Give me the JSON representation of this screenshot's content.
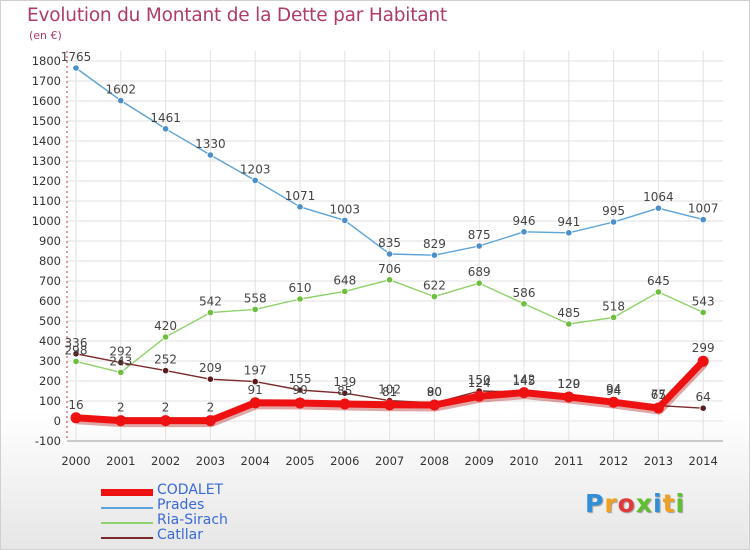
{
  "title": "Evolution du Montant de la Dette par Habitant",
  "unit": "(en €)",
  "chart_data": {
    "type": "line",
    "x": [
      "2000",
      "2001",
      "2002",
      "2003",
      "2004",
      "2005",
      "2006",
      "2007",
      "2008",
      "2009",
      "2010",
      "2011",
      "2012",
      "2013",
      "2014"
    ],
    "ylim": [
      -100,
      1800
    ],
    "yticks": [
      -100,
      0,
      100,
      200,
      300,
      400,
      500,
      600,
      700,
      800,
      900,
      1000,
      1100,
      1200,
      1300,
      1400,
      1500,
      1600,
      1700,
      1800
    ],
    "grid": true,
    "legend_position": "bottom-left",
    "series": [
      {
        "name": "Prades",
        "color": "#5ba3d9",
        "values": [
          1765,
          1602,
          1461,
          1330,
          1203,
          1071,
          1003,
          835,
          829,
          875,
          946,
          941,
          995,
          1064,
          1007
        ],
        "labels": [
          "1765",
          "1602",
          "1461",
          "1330",
          "1203",
          "1071",
          "1003",
          "835",
          "829",
          "875",
          "946",
          "941",
          "995",
          "1064",
          "1007"
        ]
      },
      {
        "name": "Ria-Sirach",
        "color": "#8fd16a",
        "values": [
          298,
          243,
          420,
          542,
          558,
          610,
          648,
          706,
          622,
          689,
          586,
          485,
          518,
          645,
          543
        ],
        "labels": [
          "298",
          "243",
          "420",
          "542",
          "558",
          "610",
          "648",
          "706",
          "622",
          "689",
          "586",
          "485",
          "518",
          "645",
          "543"
        ]
      },
      {
        "name": "Catllar",
        "color": "#7a2a2a",
        "values": [
          336,
          292,
          252,
          209,
          197,
          155,
          139,
          102,
          90,
          150,
          145,
          129,
          94,
          77,
          64
        ],
        "labels": [
          "336",
          "292",
          "252",
          "209",
          "197",
          "155",
          "139",
          "102",
          "90",
          "150",
          "145",
          "129",
          "94",
          "77",
          "64"
        ]
      },
      {
        "name": "CODALET",
        "color": "#ee1111",
        "values": [
          16,
          2,
          2,
          2,
          91,
          90,
          85,
          81,
          80,
          124,
          142,
          120,
          94,
          65,
          299
        ],
        "labels": [
          "16",
          "2",
          "2",
          "2",
          "91",
          "90",
          "85",
          "81",
          "80",
          "124",
          "142",
          "120",
          "94",
          "65",
          "299"
        ]
      }
    ],
    "legend_order": [
      "CODALET",
      "Prades",
      "Ria-Sirach",
      "Catllar"
    ]
  },
  "logo": {
    "letters": [
      {
        "ch": "P",
        "color": "#2f8fd8"
      },
      {
        "ch": "r",
        "color": "#f0a020"
      },
      {
        "ch": "o",
        "color": "#e23a3a"
      },
      {
        "ch": "x",
        "color": "#5fbf2f"
      },
      {
        "ch": "i",
        "color": "#2f8fd8"
      },
      {
        "ch": "t",
        "color": "#f0a020"
      },
      {
        "ch": "i",
        "color": "#5fbf2f"
      }
    ]
  }
}
